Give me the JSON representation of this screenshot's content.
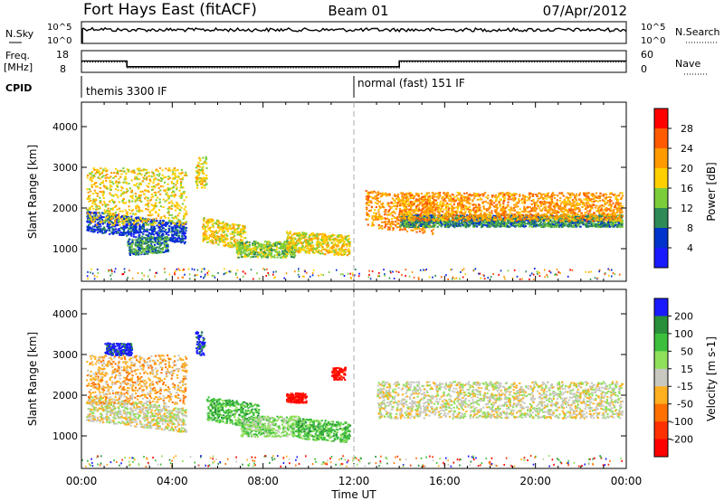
{
  "header": {
    "station": "Fort Hays East (fitACF)",
    "beam": "Beam 01",
    "date": "07/Apr/2012"
  },
  "top_panels": {
    "nsky_label": "N.Sky",
    "nsearch_label": "N.Search",
    "noise_ticks": [
      "10^5",
      "10^0"
    ],
    "freq_label": "Freq.",
    "freq_unit": "[MHz]",
    "freq_ticks": [
      "18",
      "8"
    ],
    "nave_label": "Nave",
    "nave_ticks": [
      "60",
      "0"
    ],
    "cpid_label": "CPID",
    "cpid_segments": [
      {
        "name": "themis 3300 IF",
        "start_hour": 0,
        "end_hour": 12
      },
      {
        "name": "normal (fast) 151 IF",
        "start_hour": 12,
        "end_hour": 24
      }
    ],
    "freq_profile_hours": [
      0,
      2,
      2,
      14,
      14,
      24
    ],
    "freq_profile_mhz": [
      13.2,
      13.2,
      10.6,
      10.6,
      13.2,
      13.2
    ],
    "nave_profile_hours": [
      0,
      2,
      2,
      14,
      14,
      24
    ],
    "nave_profile_value": [
      28,
      28,
      12,
      12,
      28,
      28
    ]
  },
  "chart_data": [
    {
      "type": "heatmap",
      "panel": "power",
      "xlabel": "",
      "ylabel": "Slant Range [km]",
      "yticks": [
        "1000",
        "2000",
        "3000",
        "4000"
      ],
      "ylim": [
        200,
        4600
      ],
      "xlim": [
        0,
        24
      ],
      "xticks": [
        "00:00",
        "04:00",
        "08:00",
        "12:00",
        "16:00",
        "20:00",
        "00:00"
      ],
      "colorbar_label": "Power [dB]",
      "colorbar_ticks": [
        "28",
        "24",
        "20",
        "16",
        "12",
        "8",
        "4"
      ],
      "colorbar_colors": [
        "#ff0000",
        "#ff5a00",
        "#ff9a00",
        "#ffd000",
        "#7ccd3a",
        "#2e8b57",
        "#0033cc",
        "#1a1aff"
      ],
      "scatter_bands": [
        {
          "t0": 0.2,
          "t1": 4.6,
          "r_center": 1700,
          "r_halfwidth": 250,
          "slope": -70,
          "level": 6
        },
        {
          "t0": 0.2,
          "t1": 4.6,
          "r_center": 2300,
          "r_halfwidth": 700,
          "slope": 0,
          "level": 3
        },
        {
          "t0": 2.0,
          "t1": 3.8,
          "r_center": 1050,
          "r_halfwidth": 200,
          "slope": 50,
          "level": 5
        },
        {
          "t0": 5.3,
          "t1": 7.2,
          "r_center": 1500,
          "r_halfwidth": 300,
          "slope": -120,
          "level": 3
        },
        {
          "t0": 6.8,
          "t1": 9.4,
          "r_center": 1000,
          "r_halfwidth": 200,
          "slope": 0,
          "level": 4
        },
        {
          "t0": 9.0,
          "t1": 11.8,
          "r_center": 1200,
          "r_halfwidth": 250,
          "slope": -40,
          "level": 3
        },
        {
          "t0": 12.5,
          "t1": 15.5,
          "r_center": 2000,
          "r_halfwidth": 450,
          "slope": -60,
          "level": 2
        },
        {
          "t0": 14.0,
          "t1": 23.8,
          "r_center": 1700,
          "r_halfwidth": 150,
          "slope": 0,
          "level": 5
        },
        {
          "t0": 14.0,
          "t1": 23.8,
          "r_center": 2050,
          "r_halfwidth": 350,
          "slope": 0,
          "level": 2
        },
        {
          "t0": 5.0,
          "t1": 5.5,
          "r_center": 2900,
          "r_halfwidth": 400,
          "slope": 0,
          "level": 3
        }
      ]
    },
    {
      "type": "heatmap",
      "panel": "velocity",
      "xlabel": "Time UT",
      "ylabel": "Slant Range [km]",
      "yticks": [
        "1000",
        "2000",
        "3000",
        "4000"
      ],
      "ylim": [
        200,
        4600
      ],
      "xlim": [
        0,
        24
      ],
      "xticks": [
        "00:00",
        "04:00",
        "08:00",
        "12:00",
        "16:00",
        "20:00",
        "00:00"
      ],
      "colorbar_label": "Velocity [m s-1]",
      "colorbar_ticks": [
        "200",
        "100",
        "50",
        "15",
        "-15",
        "-50",
        "-100",
        "-200"
      ],
      "colorbar_colors": [
        "#1a1aff",
        "#2a8f3a",
        "#3cbf3c",
        "#8fe05a",
        "#c8c8c0",
        "#ffb020",
        "#ff7000",
        "#ff3000",
        "#ff0000"
      ],
      "scatter_bands": [
        {
          "t0": 0.2,
          "t1": 4.6,
          "r_center": 1700,
          "r_halfwidth": 300,
          "slope": -70,
          "level": 4
        },
        {
          "t0": 0.2,
          "t1": 4.6,
          "r_center": 2400,
          "r_halfwidth": 600,
          "slope": 0,
          "level": 5
        },
        {
          "t0": 1.0,
          "t1": 2.2,
          "r_center": 3150,
          "r_halfwidth": 150,
          "slope": 0,
          "level": 0
        },
        {
          "t0": 5.0,
          "t1": 5.4,
          "r_center": 3300,
          "r_halfwidth": 300,
          "slope": 0,
          "level": 0
        },
        {
          "t0": 5.5,
          "t1": 7.8,
          "r_center": 1700,
          "r_halfwidth": 300,
          "slope": -90,
          "level": 2
        },
        {
          "t0": 7.0,
          "t1": 9.6,
          "r_center": 1250,
          "r_halfwidth": 250,
          "slope": 0,
          "level": 3
        },
        {
          "t0": 9.0,
          "t1": 9.9,
          "r_center": 1950,
          "r_halfwidth": 120,
          "slope": 0,
          "level": 8
        },
        {
          "t0": 9.5,
          "t1": 11.8,
          "r_center": 1200,
          "r_halfwidth": 250,
          "slope": -40,
          "level": 2
        },
        {
          "t0": 11.0,
          "t1": 11.6,
          "r_center": 2550,
          "r_halfwidth": 150,
          "slope": 0,
          "level": 8
        },
        {
          "t0": 13.0,
          "t1": 23.8,
          "r_center": 1900,
          "r_halfwidth": 450,
          "slope": 0,
          "level": 4
        }
      ]
    }
  ]
}
